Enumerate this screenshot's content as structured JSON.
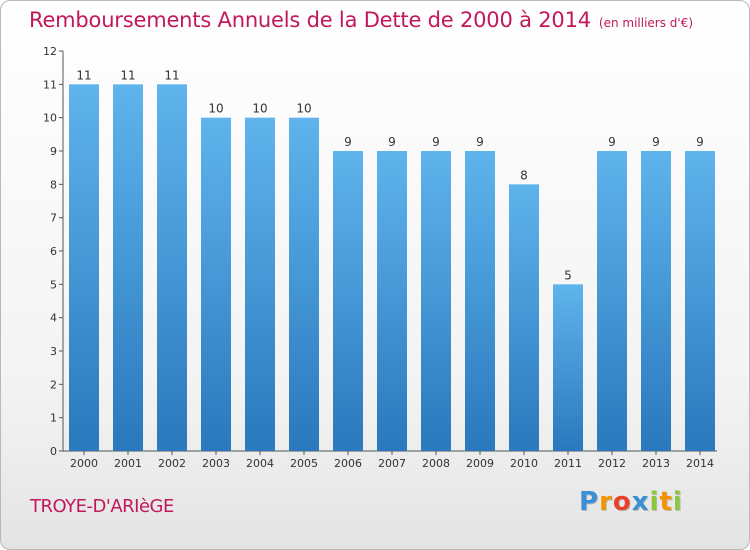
{
  "chart_data": {
    "type": "bar",
    "title": "Remboursements Annuels de la Dette de 2000 à 2014",
    "unit_note": "(en milliers d'€)",
    "categories": [
      "2000",
      "2001",
      "2002",
      "2003",
      "2004",
      "2005",
      "2006",
      "2007",
      "2008",
      "2009",
      "2010",
      "2011",
      "2012",
      "2013",
      "2014"
    ],
    "values": [
      11,
      11,
      11,
      10,
      10,
      10,
      9,
      9,
      9,
      9,
      8,
      5,
      9,
      9,
      9
    ],
    "y_ticks": [
      0,
      1,
      2,
      3,
      4,
      5,
      6,
      7,
      8,
      9,
      10,
      11,
      12
    ],
    "ylim": [
      0,
      12
    ],
    "xlabel": "",
    "ylabel": "",
    "grid": false,
    "bar_color_light": "#5fb4ec",
    "bar_color_dark": "#2a78bd"
  },
  "footer": {
    "commune": "TROYE-D'ARIèGE",
    "brand_letters": [
      {
        "ch": "P",
        "color": "#3b8fd4"
      },
      {
        "ch": "r",
        "color": "#f29400"
      },
      {
        "ch": "o",
        "color": "#e8412a"
      },
      {
        "ch": "x",
        "color": "#3b8fd4"
      },
      {
        "ch": "i",
        "color": "#8cc63f"
      },
      {
        "ch": "t",
        "color": "#f29400"
      },
      {
        "ch": "i",
        "color": "#8cc63f"
      }
    ]
  }
}
